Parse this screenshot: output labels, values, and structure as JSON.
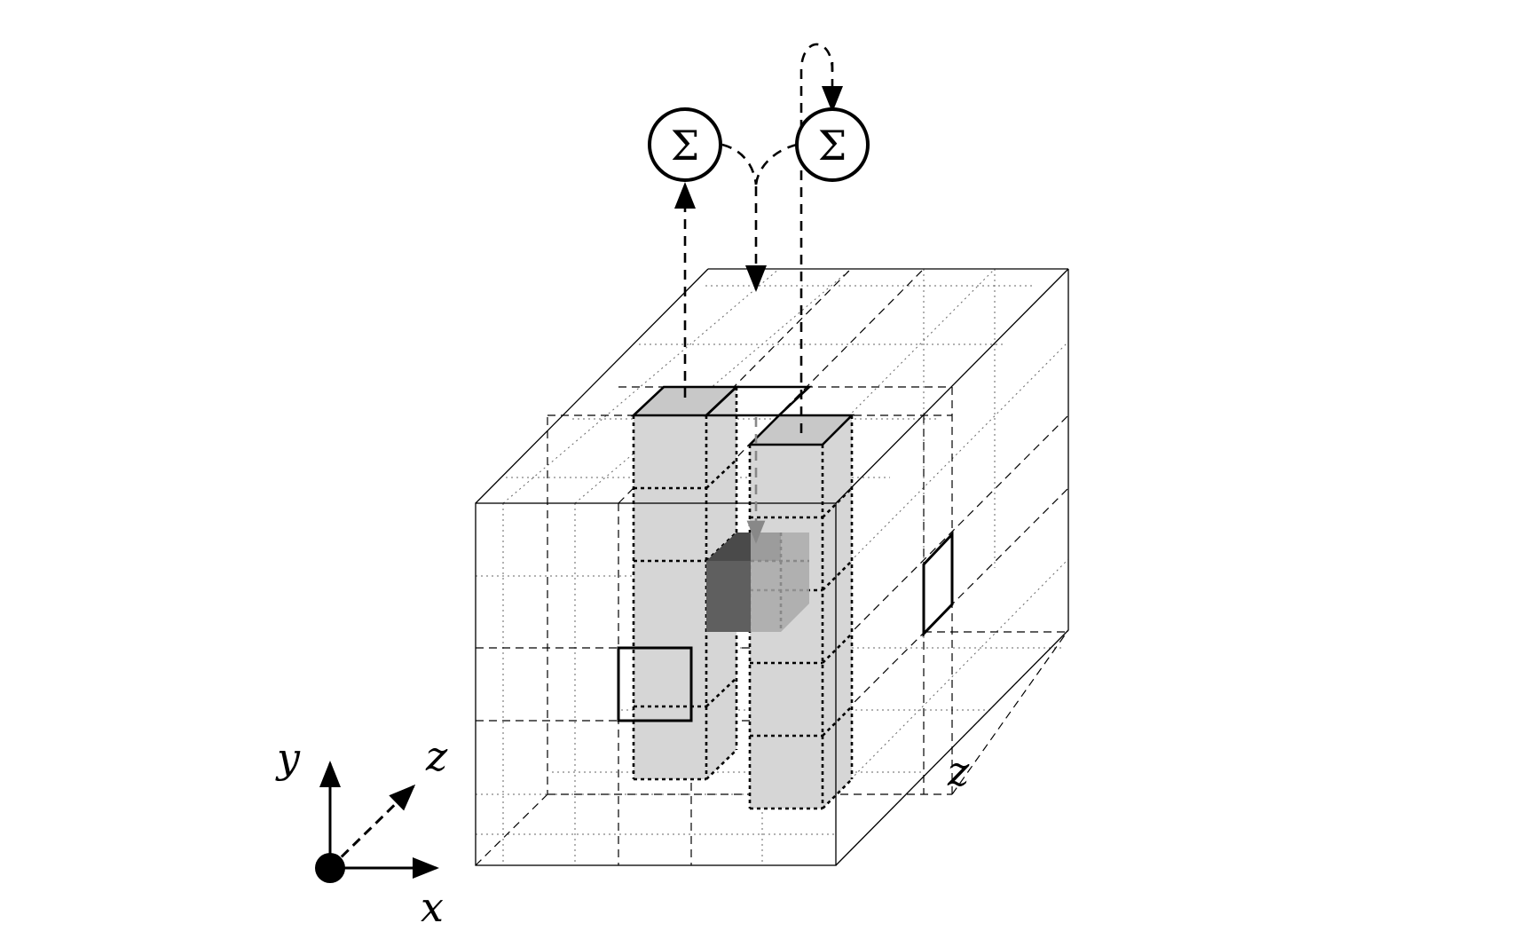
{
  "operators": {
    "left": "Σ",
    "right": "Σ"
  },
  "axes": {
    "y": "y",
    "z": "z",
    "x": "x"
  },
  "grid_labels": {
    "depth": "z"
  }
}
